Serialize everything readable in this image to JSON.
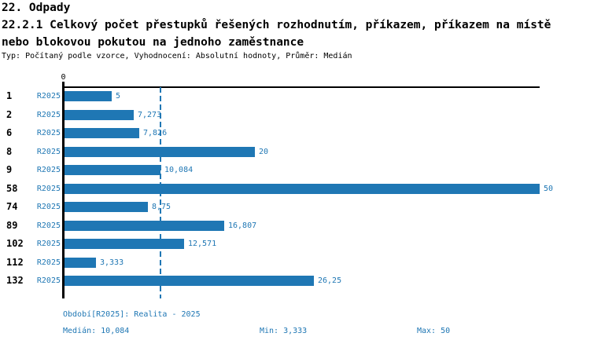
{
  "header": {
    "line1": "22. Odpady",
    "line2": "22.2.1 Celkový počet přestupků řešených rozhodnutím, příkazem, příkazem na místě",
    "line3": "nebo blokovou pokutou na jednoho zaměstnance",
    "meta": "Typ: Počítaný podle vzorce, Vyhodnocení: Absolutní hodnoty, Průměr: Medián"
  },
  "chart_data": {
    "type": "bar",
    "orientation": "horizontal",
    "title": "22.2.1 Celkový počet přestupků řešených rozhodnutím, příkazem, příkazem na místě nebo blokovou pokutou na jednoho zaměstnance",
    "subtitle": "Typ: Počítaný podle vzorce, Vyhodnocení: Absolutní hodnoty, Průměr: Medián",
    "categories": [
      "1",
      "2",
      "6",
      "8",
      "9",
      "58",
      "74",
      "89",
      "102",
      "112",
      "132"
    ],
    "series_label": "R2025",
    "values": [
      5,
      7.273,
      7.826,
      20,
      10.084,
      50,
      8.75,
      16.807,
      12.571,
      3.333,
      26.25
    ],
    "value_labels": [
      "5",
      "7,273",
      "7,826",
      "20",
      "10,084",
      "50",
      "8,75",
      "16,807",
      "12,571",
      "3,333",
      "26,25"
    ],
    "xlim": [
      0,
      50
    ],
    "x_tick_labels": [
      "0"
    ],
    "median_value": 10.084,
    "grid": false,
    "legend": "none",
    "bar_color": "#1f77b4"
  },
  "footer": {
    "period": "Období[R2025]: Realita - 2025",
    "median": "Medián: 10,084",
    "min": "Min: 3,333",
    "max": "Max: 50"
  },
  "colors": {
    "accent": "#1f77b4",
    "text": "#000000",
    "background": "#ffffff"
  }
}
